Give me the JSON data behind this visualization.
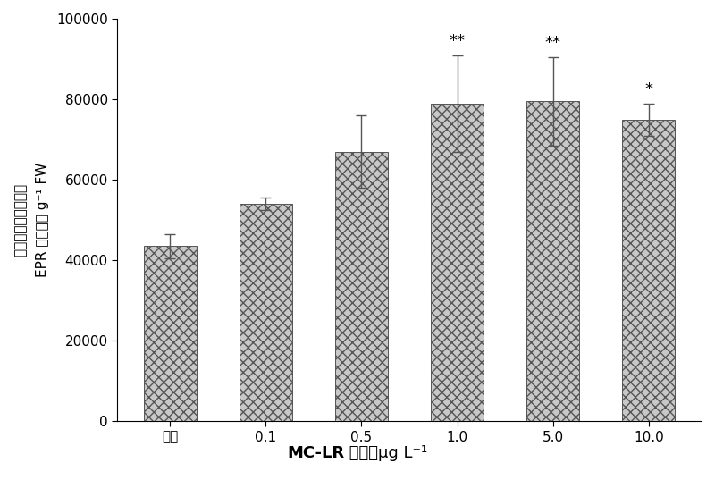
{
  "categories": [
    "对照",
    "0.1",
    "0.5",
    "1.0",
    "5.0",
    "10.0"
  ],
  "values": [
    43500,
    54000,
    67000,
    79000,
    79500,
    75000
  ],
  "errors": [
    3000,
    1500,
    9000,
    12000,
    11000,
    4000
  ],
  "significance": [
    "",
    "",
    "",
    "**",
    "**",
    "*"
  ],
  "ylabel_line1": "超氧阴离子自由基，",
  "ylabel_line2": "EPR 信号强度 g⁻¹ FW",
  "xlabel_bold": "MC-LR",
  "xlabel_rest": " 浓度，μg L⁻¹",
  "ylim": [
    0,
    100000
  ],
  "yticks": [
    0,
    20000,
    40000,
    60000,
    80000,
    100000
  ],
  "bar_color": "#c8c8c8",
  "hatch": "xxx",
  "bar_edgecolor": "#555555",
  "background_color": "#ffffff",
  "figsize": [
    8.0,
    5.56
  ],
  "dpi": 100
}
